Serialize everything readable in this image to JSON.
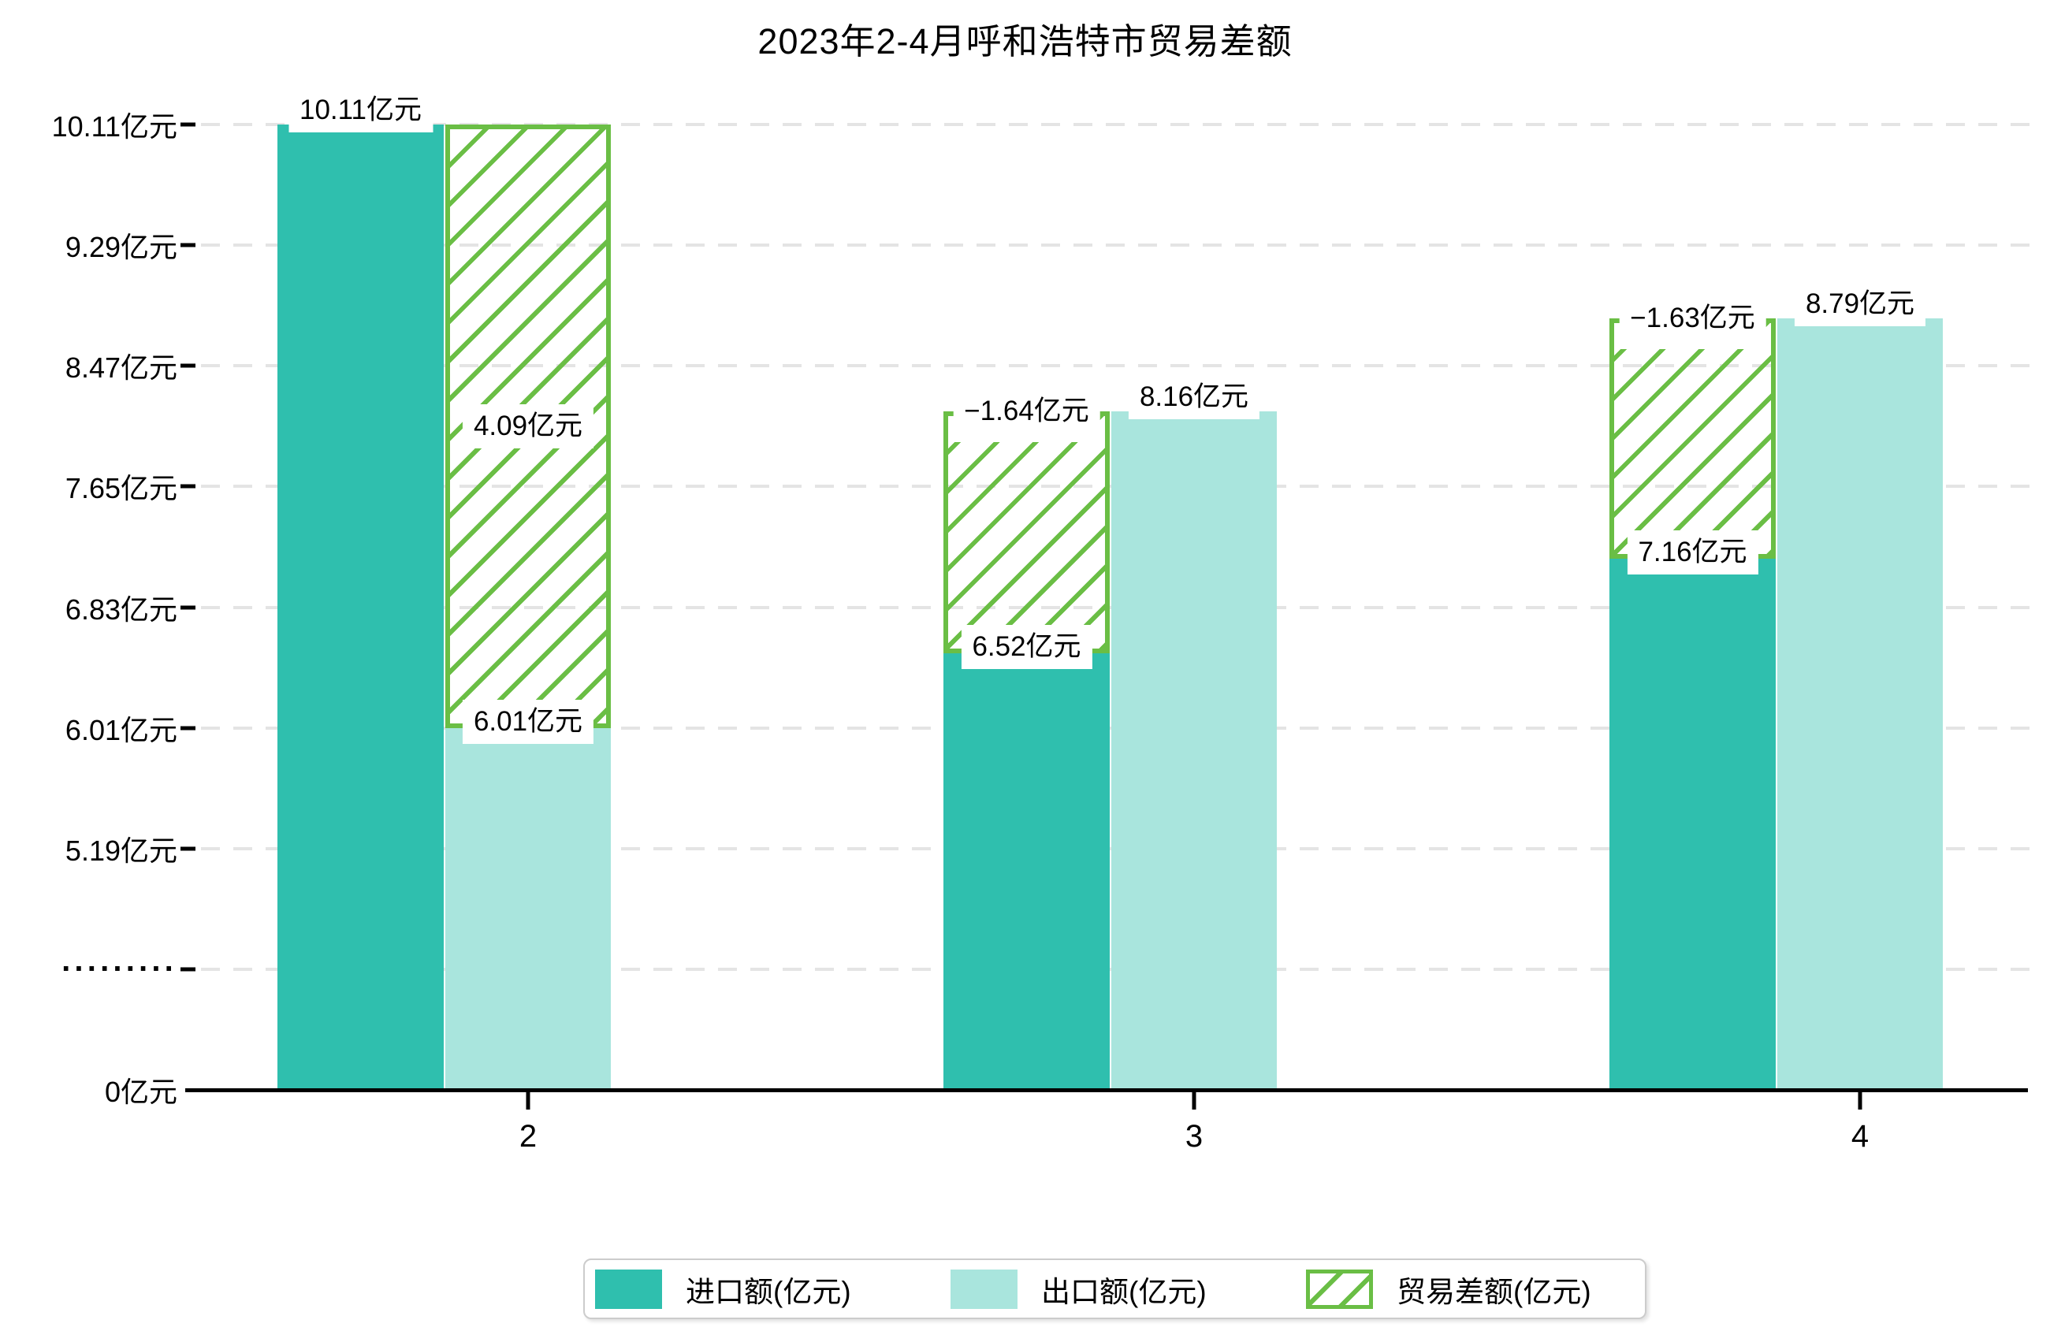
{
  "title": "2023年2-4月呼和浩特市贸易差额",
  "colors": {
    "import": "#2fbfae",
    "export": "#a9e5dd",
    "balance": "#6abe45",
    "gridline": "#e4e4e4",
    "axis": "#000000",
    "label_bg": "#ffffff"
  },
  "y_axis": {
    "unit": "亿元",
    "ticks": [
      {
        "label": "10.11亿元",
        "pos": 10.11
      },
      {
        "label": "9.29亿元",
        "pos": 9.29
      },
      {
        "label": "8.47亿元",
        "pos": 8.47
      },
      {
        "label": "7.65亿元",
        "pos": 7.65
      },
      {
        "label": "6.83亿元",
        "pos": 6.83
      },
      {
        "label": "6.01亿元",
        "pos": 6.01
      },
      {
        "label": "5.19亿元",
        "pos": 5.19
      },
      {
        "label": "·········",
        "pos": 4.37,
        "is_break": true
      },
      {
        "label": "0亿元",
        "pos": 3.55,
        "is_zero": true
      }
    ]
  },
  "x_axis": {
    "ticks": [
      "2",
      "3",
      "4"
    ]
  },
  "legend": [
    {
      "label": "进口额(亿元)",
      "swatch": "import"
    },
    {
      "label": "出口额(亿元)",
      "swatch": "export"
    },
    {
      "label": "贸易差额(亿元)",
      "swatch": "balance-hatch"
    }
  ],
  "chart_data": {
    "type": "bar",
    "title": "2023年2-4月呼和浩特市贸易差额",
    "xlabel": "",
    "ylabel": "亿元",
    "axis_break_between": [
      0,
      5.19
    ],
    "grid": "horizontal-dashed",
    "legend_position": "bottom-center",
    "categories": [
      "2",
      "3",
      "4"
    ],
    "series": [
      {
        "name": "进口额(亿元)",
        "values": [
          10.11,
          6.52,
          7.16
        ]
      },
      {
        "name": "出口额(亿元)",
        "values": [
          6.01,
          8.16,
          8.79
        ]
      },
      {
        "name": "贸易差额(亿元)",
        "values": [
          4.09,
          -1.64,
          -1.63
        ]
      }
    ],
    "months": [
      {
        "cat": "2",
        "import": 10.11,
        "export": 6.01,
        "balance": 4.09,
        "import_label": "10.11亿元",
        "export_label": "6.01亿元",
        "balance_label": "4.09亿元"
      },
      {
        "cat": "3",
        "import": 6.52,
        "export": 8.16,
        "balance": -1.64,
        "import_label": "6.52亿元",
        "export_label": "8.16亿元",
        "balance_label": "−1.64亿元"
      },
      {
        "cat": "4",
        "import": 7.16,
        "export": 8.79,
        "balance": -1.63,
        "import_label": "7.16亿元",
        "export_label": "8.79亿元",
        "balance_label": "−1.63亿元"
      }
    ]
  }
}
